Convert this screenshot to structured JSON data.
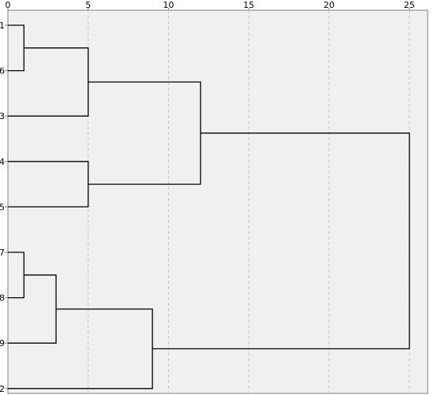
{
  "chart_data": {
    "type": "dendrogram",
    "title": "",
    "xlabel": "",
    "ylabel": "",
    "x_ticks": [
      0,
      5,
      10,
      15,
      20,
      25
    ],
    "xlim": [
      0,
      26
    ],
    "grid": "vertical dashed",
    "leaf_order": [
      "1",
      "6",
      "3",
      "4",
      "5",
      "7",
      "8",
      "9",
      "2"
    ],
    "merges": [
      {
        "id": "m1",
        "children": [
          "1",
          "6"
        ],
        "height": 1
      },
      {
        "id": "m2",
        "children": [
          "7",
          "8"
        ],
        "height": 1
      },
      {
        "id": "m3",
        "children": [
          "m2",
          "9"
        ],
        "height": 3
      },
      {
        "id": "m4",
        "children": [
          "m1",
          "3"
        ],
        "height": 5
      },
      {
        "id": "m5",
        "children": [
          "4",
          "5"
        ],
        "height": 5
      },
      {
        "id": "m6",
        "children": [
          "m3",
          "2"
        ],
        "height": 9
      },
      {
        "id": "m7",
        "children": [
          "m4",
          "m5"
        ],
        "height": 12
      },
      {
        "id": "m8",
        "children": [
          "m7",
          "m6"
        ],
        "height": 25
      }
    ]
  },
  "colors": {
    "plot_background": "#f0f0f0",
    "frame": "#808080",
    "grid": "#c8c8c8",
    "line": "#000000"
  }
}
